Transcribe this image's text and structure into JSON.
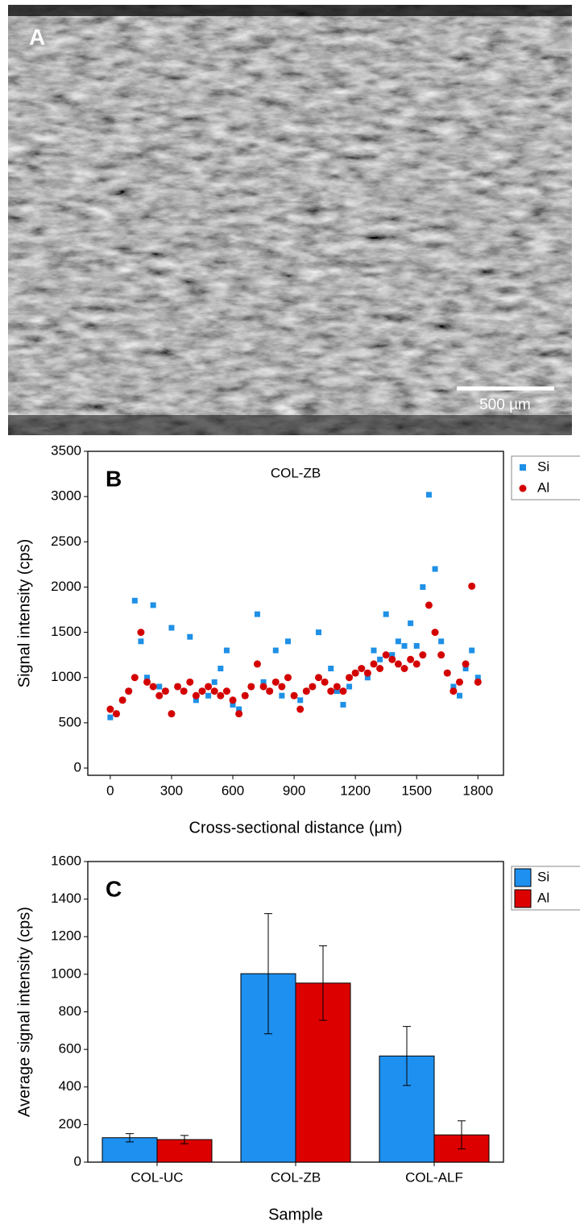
{
  "panel_a": {
    "label": "A",
    "scale_bar": "500 µm"
  },
  "chart_data": [
    {
      "type": "scatter",
      "panel_label": "B",
      "annotation": "COL-ZB",
      "x_label": "Cross-sectional distance (µm)",
      "y_label": "Signal intensity (cps)",
      "xlim": [
        -110,
        1925
      ],
      "ylim": [
        -80,
        3500
      ],
      "xticks": [
        0,
        300,
        600,
        900,
        1200,
        1500,
        1800
      ],
      "yticks": [
        0,
        500,
        1000,
        1500,
        2000,
        2500,
        3000,
        3500
      ],
      "x": [
        0,
        30,
        60,
        90,
        120,
        150,
        180,
        210,
        240,
        270,
        300,
        330,
        360,
        390,
        420,
        450,
        480,
        510,
        540,
        570,
        600,
        630,
        660,
        690,
        720,
        750,
        780,
        810,
        840,
        870,
        900,
        930,
        960,
        990,
        1020,
        1050,
        1080,
        1110,
        1140,
        1170,
        1200,
        1230,
        1260,
        1290,
        1320,
        1350,
        1380,
        1410,
        1440,
        1470,
        1500,
        1530,
        1560,
        1590,
        1620,
        1650,
        1680,
        1710,
        1740,
        1770,
        1800
      ],
      "legend": "outside-right",
      "series": [
        {
          "name": "Si",
          "color": "#1e90e6",
          "marker": "square",
          "values": [
            560,
            600,
            750,
            850,
            1850,
            1400,
            1000,
            1800,
            900,
            850,
            1550,
            900,
            850,
            1450,
            750,
            850,
            800,
            950,
            1100,
            1300,
            700,
            650,
            800,
            900,
            1700,
            950,
            850,
            1300,
            800,
            1400,
            800,
            750,
            850,
            900,
            1500,
            950,
            1100,
            850,
            700,
            900,
            1050,
            1100,
            1000,
            1300,
            1200,
            1700,
            1250,
            1400,
            1350,
            1600,
            1350,
            2000,
            3020,
            2200,
            1400,
            1050,
            900,
            800,
            1100,
            1300,
            1000
          ]
        },
        {
          "name": "Al",
          "color": "#d40000",
          "marker": "circle",
          "values": [
            650,
            600,
            750,
            850,
            1000,
            1500,
            950,
            900,
            800,
            850,
            600,
            900,
            850,
            950,
            800,
            850,
            900,
            850,
            800,
            850,
            750,
            600,
            800,
            900,
            1150,
            900,
            850,
            950,
            900,
            1000,
            800,
            650,
            850,
            900,
            1000,
            950,
            850,
            900,
            850,
            1000,
            1050,
            1100,
            1050,
            1150,
            1100,
            1250,
            1200,
            1150,
            1100,
            1200,
            1150,
            1250,
            1800,
            1500,
            1250,
            1050,
            850,
            950,
            1150,
            2010,
            950
          ]
        }
      ]
    },
    {
      "type": "bar",
      "panel_label": "C",
      "x_label": "Sample",
      "y_label": "Average signal intensity (cps)",
      "categories": [
        "COL-UC",
        "COL-ZB",
        "COL-ALF"
      ],
      "ylim": [
        0,
        1600
      ],
      "yticks": [
        0,
        200,
        400,
        600,
        800,
        1000,
        1200,
        1400,
        1600
      ],
      "legend": "outside-right",
      "series": [
        {
          "name": "Si",
          "color": "#1e90f0",
          "values": [
            130,
            1003,
            565
          ],
          "errors": [
            22,
            320,
            157
          ]
        },
        {
          "name": "Al",
          "color": "#dd0000",
          "values": [
            120,
            953,
            145
          ],
          "errors": [
            22,
            198,
            75
          ]
        }
      ]
    }
  ]
}
